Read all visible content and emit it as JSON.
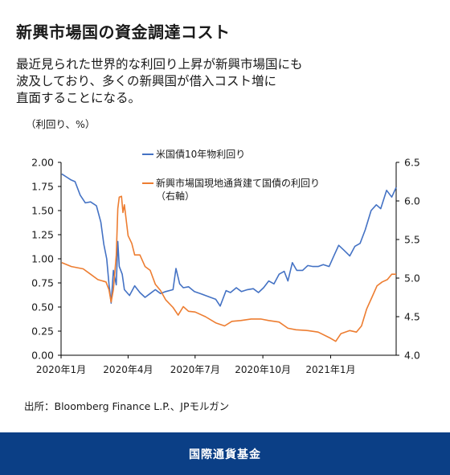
{
  "title": "新興市場国の資金調達コスト",
  "subtitle": "最近見られた世界的な利回り上昇が新興市場国にも\n波及しており、多くの新興国が借入コスト増に\n直面することになる。",
  "unit_label": "（利回り、%）",
  "source": "出所：Bloomberg Finance L.P.、JPモルガン",
  "footer": "国際通貨基金",
  "colors": {
    "us": "#4472c4",
    "em": "#ed7d31",
    "footer_bg": "#0b3f86"
  },
  "chart_data": {
    "type": "line",
    "x_ticks": [
      "2020年1月",
      "2020年4月",
      "2020年7月",
      "2020年10月",
      "2021年1月"
    ],
    "x_tick_dates": [
      "2020-01-01",
      "2020-04-01",
      "2020-07-01",
      "2020-10-01",
      "2021-01-01"
    ],
    "x_range": [
      "2020-01-01",
      "2021-03-31"
    ],
    "y_left": {
      "ticks": [
        "0.00",
        "0.25",
        "0.50",
        "0.75",
        "1.00",
        "1.25",
        "1.50",
        "1.75",
        "2.00"
      ],
      "range": [
        0,
        2
      ]
    },
    "y_right": {
      "ticks": [
        "4.0",
        "4.5",
        "5.0",
        "5.5",
        "6.0",
        "6.5"
      ],
      "range": [
        4,
        6.5
      ]
    },
    "grid": false,
    "legend_position": "top-center",
    "series": [
      {
        "name": "米国債10年物利回り",
        "axis": "left",
        "color": "#4472c4",
        "points": [
          [
            "2020-01-02",
            1.88
          ],
          [
            "2020-01-08",
            1.85
          ],
          [
            "2020-01-14",
            1.82
          ],
          [
            "2020-01-20",
            1.8
          ],
          [
            "2020-01-27",
            1.66
          ],
          [
            "2020-02-03",
            1.58
          ],
          [
            "2020-02-10",
            1.59
          ],
          [
            "2020-02-18",
            1.55
          ],
          [
            "2020-02-24",
            1.38
          ],
          [
            "2020-02-28",
            1.15
          ],
          [
            "2020-03-03",
            1.0
          ],
          [
            "2020-03-06",
            0.74
          ],
          [
            "2020-03-09",
            0.54
          ],
          [
            "2020-03-12",
            0.88
          ],
          [
            "2020-03-16",
            0.73
          ],
          [
            "2020-03-18",
            1.18
          ],
          [
            "2020-03-20",
            0.92
          ],
          [
            "2020-03-24",
            0.84
          ],
          [
            "2020-03-27",
            0.68
          ],
          [
            "2020-04-03",
            0.62
          ],
          [
            "2020-04-10",
            0.72
          ],
          [
            "2020-04-17",
            0.65
          ],
          [
            "2020-04-24",
            0.6
          ],
          [
            "2020-05-01",
            0.64
          ],
          [
            "2020-05-08",
            0.68
          ],
          [
            "2020-05-15",
            0.64
          ],
          [
            "2020-05-22",
            0.66
          ],
          [
            "2020-06-01",
            0.68
          ],
          [
            "2020-06-05",
            0.9
          ],
          [
            "2020-06-10",
            0.74
          ],
          [
            "2020-06-15",
            0.7
          ],
          [
            "2020-06-22",
            0.71
          ],
          [
            "2020-06-30",
            0.66
          ],
          [
            "2020-07-08",
            0.64
          ],
          [
            "2020-07-15",
            0.62
          ],
          [
            "2020-07-22",
            0.6
          ],
          [
            "2020-07-29",
            0.58
          ],
          [
            "2020-08-04",
            0.51
          ],
          [
            "2020-08-12",
            0.67
          ],
          [
            "2020-08-18",
            0.65
          ],
          [
            "2020-08-26",
            0.7
          ],
          [
            "2020-09-02",
            0.66
          ],
          [
            "2020-09-10",
            0.68
          ],
          [
            "2020-09-18",
            0.69
          ],
          [
            "2020-09-25",
            0.65
          ],
          [
            "2020-10-02",
            0.7
          ],
          [
            "2020-10-09",
            0.77
          ],
          [
            "2020-10-16",
            0.74
          ],
          [
            "2020-10-23",
            0.84
          ],
          [
            "2020-10-30",
            0.87
          ],
          [
            "2020-11-04",
            0.77
          ],
          [
            "2020-11-10",
            0.96
          ],
          [
            "2020-11-16",
            0.88
          ],
          [
            "2020-11-24",
            0.88
          ],
          [
            "2020-12-01",
            0.93
          ],
          [
            "2020-12-08",
            0.92
          ],
          [
            "2020-12-15",
            0.92
          ],
          [
            "2020-12-22",
            0.94
          ],
          [
            "2020-12-30",
            0.92
          ],
          [
            "2021-01-06",
            1.04
          ],
          [
            "2021-01-12",
            1.14
          ],
          [
            "2021-01-19",
            1.09
          ],
          [
            "2021-01-27",
            1.03
          ],
          [
            "2021-02-03",
            1.13
          ],
          [
            "2021-02-10",
            1.16
          ],
          [
            "2021-02-17",
            1.3
          ],
          [
            "2021-02-25",
            1.5
          ],
          [
            "2021-03-04",
            1.56
          ],
          [
            "2021-03-10",
            1.52
          ],
          [
            "2021-03-18",
            1.71
          ],
          [
            "2021-03-25",
            1.64
          ],
          [
            "2021-03-31",
            1.74
          ]
        ]
      },
      {
        "name": "新興市場国現地通貨建て国債の利回り",
        "name_note": "（右軸）",
        "axis": "right",
        "color": "#ed7d31",
        "points": [
          [
            "2020-01-02",
            5.2
          ],
          [
            "2020-01-15",
            5.15
          ],
          [
            "2020-01-31",
            5.12
          ],
          [
            "2020-02-10",
            5.05
          ],
          [
            "2020-02-20",
            4.98
          ],
          [
            "2020-03-02",
            4.95
          ],
          [
            "2020-03-06",
            4.85
          ],
          [
            "2020-03-09",
            4.69
          ],
          [
            "2020-03-12",
            4.85
          ],
          [
            "2020-03-16",
            5.3
          ],
          [
            "2020-03-18",
            5.9
          ],
          [
            "2020-03-20",
            6.05
          ],
          [
            "2020-03-23",
            6.06
          ],
          [
            "2020-03-25",
            5.85
          ],
          [
            "2020-03-27",
            5.95
          ],
          [
            "2020-04-01",
            5.55
          ],
          [
            "2020-04-06",
            5.45
          ],
          [
            "2020-04-10",
            5.3
          ],
          [
            "2020-04-17",
            5.3
          ],
          [
            "2020-04-24",
            5.15
          ],
          [
            "2020-05-01",
            5.1
          ],
          [
            "2020-05-08",
            4.92
          ],
          [
            "2020-05-15",
            4.84
          ],
          [
            "2020-05-22",
            4.72
          ],
          [
            "2020-06-01",
            4.62
          ],
          [
            "2020-06-08",
            4.52
          ],
          [
            "2020-06-15",
            4.63
          ],
          [
            "2020-06-22",
            4.57
          ],
          [
            "2020-07-01",
            4.56
          ],
          [
            "2020-07-15",
            4.5
          ],
          [
            "2020-07-29",
            4.42
          ],
          [
            "2020-08-10",
            4.38
          ],
          [
            "2020-08-20",
            4.44
          ],
          [
            "2020-09-01",
            4.45
          ],
          [
            "2020-09-15",
            4.47
          ],
          [
            "2020-09-28",
            4.47
          ],
          [
            "2020-10-09",
            4.45
          ],
          [
            "2020-10-23",
            4.43
          ],
          [
            "2020-11-04",
            4.35
          ],
          [
            "2020-11-15",
            4.33
          ],
          [
            "2020-12-01",
            4.32
          ],
          [
            "2020-12-15",
            4.3
          ],
          [
            "2021-01-01",
            4.22
          ],
          [
            "2021-01-08",
            4.18
          ],
          [
            "2021-01-15",
            4.28
          ],
          [
            "2021-01-27",
            4.32
          ],
          [
            "2021-02-05",
            4.3
          ],
          [
            "2021-02-12",
            4.38
          ],
          [
            "2021-02-19",
            4.6
          ],
          [
            "2021-02-26",
            4.75
          ],
          [
            "2021-03-05",
            4.9
          ],
          [
            "2021-03-12",
            4.95
          ],
          [
            "2021-03-19",
            4.98
          ],
          [
            "2021-03-25",
            5.05
          ],
          [
            "2021-03-31",
            5.05
          ]
        ]
      }
    ]
  }
}
